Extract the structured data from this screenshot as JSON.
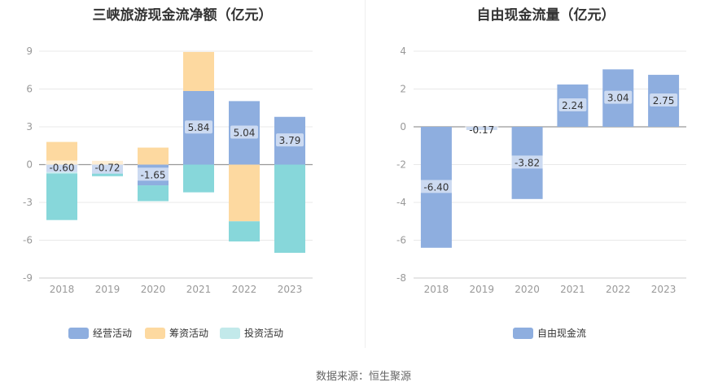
{
  "chart_data": [
    {
      "type": "bar",
      "stacked": true,
      "title": "三峡旅游现金流净额（亿元）",
      "categories": [
        "2018",
        "2019",
        "2020",
        "2021",
        "2022",
        "2023"
      ],
      "ylim": [
        -9,
        9
      ],
      "yticks": [
        9,
        6,
        3,
        0,
        -3,
        -6,
        -9
      ],
      "grid": true,
      "legend_position": "bottom",
      "series": [
        {
          "name": "经营活动",
          "color": "#8eaedf",
          "values": [
            -0.6,
            -0.72,
            -1.65,
            5.84,
            5.04,
            3.79
          ]
        },
        {
          "name": "筹资活动",
          "color": "#fdd9a0",
          "values": [
            1.8,
            0.3,
            1.35,
            3.1,
            -4.5,
            0.0
          ]
        },
        {
          "name": "投资活动",
          "color": "#87d7da",
          "values": [
            -3.8,
            -0.2,
            -1.25,
            -2.2,
            -1.6,
            -7.0
          ]
        }
      ],
      "data_labels": [
        "-0.60",
        "-0.72",
        "-1.65",
        "5.84",
        "5.04",
        "3.79"
      ]
    },
    {
      "type": "bar",
      "title": "自由现金流量（亿元）",
      "categories": [
        "2018",
        "2019",
        "2020",
        "2021",
        "2022",
        "2023"
      ],
      "ylim": [
        -8,
        4
      ],
      "yticks": [
        4,
        2,
        0,
        -2,
        -4,
        -6,
        -8
      ],
      "grid": true,
      "legend_position": "bottom",
      "series": [
        {
          "name": "自由现金流",
          "color": "#8eaedf",
          "values": [
            -6.4,
            -0.17,
            -3.82,
            2.24,
            3.04,
            2.75
          ]
        }
      ],
      "data_labels": [
        "-6.40",
        "-0.17",
        "-3.82",
        "2.24",
        "3.04",
        "2.75"
      ]
    }
  ],
  "legend_colors": {
    "经营活动": "#8eaedf",
    "筹资活动": "#fdd9a0",
    "投资活动": "#c2e9ea",
    "自由现金流": "#8eaedf"
  },
  "source": "数据来源：恒生聚源"
}
